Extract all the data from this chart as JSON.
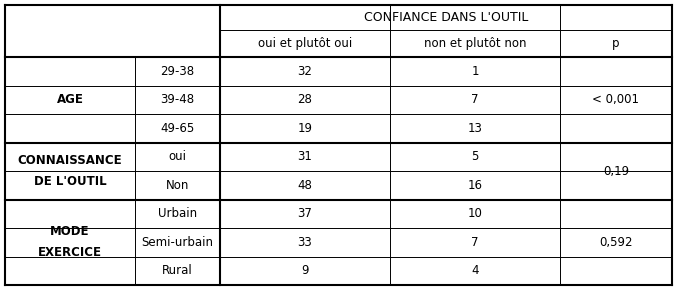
{
  "header_main": "CONFIANCE DANS L'OUTIL",
  "header_sub": [
    "oui et plutôt oui",
    "non et plutôt non",
    "p"
  ],
  "sections": [
    {
      "label_lines": [
        "AGE"
      ],
      "rows": [
        {
          "sub": "29-38",
          "v1": "32",
          "v2": "1"
        },
        {
          "sub": "39-48",
          "v1": "28",
          "v2": "7"
        },
        {
          "sub": "49-65",
          "v1": "19",
          "v2": "13"
        }
      ],
      "p": "< 0,001"
    },
    {
      "label_lines": [
        "CONNAISSANCE",
        "DE L'OUTIL"
      ],
      "rows": [
        {
          "sub": "oui",
          "v1": "31",
          "v2": "5"
        },
        {
          "sub": "Non",
          "v1": "48",
          "v2": "16"
        }
      ],
      "p": "0,19"
    },
    {
      "label_lines": [
        "MODE",
        "EXERCICE"
      ],
      "rows": [
        {
          "sub": "Urbain",
          "v1": "37",
          "v2": "10"
        },
        {
          "sub": "Semi-urbain",
          "v1": "33",
          "v2": "7"
        },
        {
          "sub": "Rural",
          "v1": "9",
          "v2": "4"
        }
      ],
      "p": "0,592"
    }
  ],
  "figsize": [
    6.8,
    2.9
  ],
  "dpi": 100,
  "font_size": 8.5,
  "background": "#ffffff",
  "line_color": "#000000"
}
